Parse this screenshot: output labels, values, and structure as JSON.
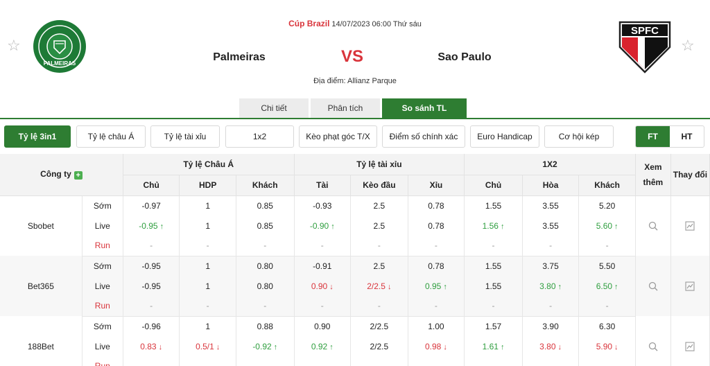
{
  "match": {
    "competition": "Cúp Brazil",
    "datetime": "14/07/2023 06:00 Thứ sáu",
    "home_team": "Palmeiras",
    "vs": "VS",
    "away_team": "Sao Paulo",
    "venue": "Địa điểm: Allianz Parque",
    "home_logo_text": "PALMEIRAS",
    "away_logo_text": "SPFC"
  },
  "main_tabs": [
    {
      "label": "Chi tiết",
      "active": false
    },
    {
      "label": "Phân tích",
      "active": false
    },
    {
      "label": "So sánh TL",
      "active": true
    }
  ],
  "filters": [
    {
      "label": "Tỷ lệ 3in1",
      "active": true
    },
    {
      "label": "Tỷ lệ châu Á",
      "active": false
    },
    {
      "label": "Tỷ lệ tài xỉu",
      "active": false
    },
    {
      "label": "1x2",
      "active": false
    },
    {
      "label": "Kèo phạt góc T/X",
      "active": false
    },
    {
      "label": "Điểm số chính xác",
      "active": false
    },
    {
      "label": "Euro Handicap",
      "active": false
    },
    {
      "label": "Cơ hội kép",
      "active": false
    }
  ],
  "period": {
    "ft": "FT",
    "ht": "HT",
    "active": "FT"
  },
  "table": {
    "company_header": "Công ty",
    "groups": [
      "Tỷ lệ Châu Á",
      "Tỷ lệ tài xỉu",
      "1X2"
    ],
    "view_more": "Xem thêm",
    "change": "Thay đổi",
    "subheaders": [
      "Chủ",
      "HDP",
      "Khách",
      "Tài",
      "Kèo đầu",
      "Xỉu",
      "Chủ",
      "Hòa",
      "Khách"
    ],
    "rows": [
      {
        "company": "Sbobet",
        "lines": [
          {
            "type": "Sớm",
            "cells": [
              [
                "-0.97",
                ""
              ],
              [
                "1",
                ""
              ],
              [
                "0.85",
                ""
              ],
              [
                "-0.93",
                ""
              ],
              [
                "2.5",
                ""
              ],
              [
                "0.78",
                ""
              ],
              [
                "1.55",
                ""
              ],
              [
                "3.55",
                ""
              ],
              [
                "5.20",
                ""
              ]
            ]
          },
          {
            "type": "Live",
            "cells": [
              [
                "-0.95",
                "up"
              ],
              [
                "1",
                ""
              ],
              [
                "0.85",
                ""
              ],
              [
                "-0.90",
                "up"
              ],
              [
                "2.5",
                ""
              ],
              [
                "0.78",
                ""
              ],
              [
                "1.56",
                "up"
              ],
              [
                "3.55",
                ""
              ],
              [
                "5.60",
                "up"
              ]
            ]
          },
          {
            "type": "Run",
            "cells": [
              [
                "-",
                ""
              ],
              [
                "-",
                ""
              ],
              [
                "-",
                ""
              ],
              [
                "-",
                ""
              ],
              [
                "-",
                ""
              ],
              [
                "-",
                ""
              ],
              [
                "-",
                ""
              ],
              [
                "-",
                ""
              ],
              [
                "-",
                ""
              ]
            ]
          }
        ]
      },
      {
        "company": "Bet365",
        "lines": [
          {
            "type": "Sớm",
            "cells": [
              [
                "-0.95",
                ""
              ],
              [
                "1",
                ""
              ],
              [
                "0.80",
                ""
              ],
              [
                "-0.91",
                ""
              ],
              [
                "2.5",
                ""
              ],
              [
                "0.78",
                ""
              ],
              [
                "1.55",
                ""
              ],
              [
                "3.75",
                ""
              ],
              [
                "5.50",
                ""
              ]
            ]
          },
          {
            "type": "Live",
            "cells": [
              [
                "-0.95",
                ""
              ],
              [
                "1",
                ""
              ],
              [
                "0.80",
                ""
              ],
              [
                "0.90",
                "down"
              ],
              [
                "2/2.5",
                "down"
              ],
              [
                "0.95",
                "up"
              ],
              [
                "1.55",
                ""
              ],
              [
                "3.80",
                "up"
              ],
              [
                "6.50",
                "up"
              ]
            ]
          },
          {
            "type": "Run",
            "cells": [
              [
                "-",
                ""
              ],
              [
                "-",
                ""
              ],
              [
                "-",
                ""
              ],
              [
                "-",
                ""
              ],
              [
                "-",
                ""
              ],
              [
                "-",
                ""
              ],
              [
                "-",
                ""
              ],
              [
                "-",
                ""
              ],
              [
                "-",
                ""
              ]
            ]
          }
        ]
      },
      {
        "company": "188Bet",
        "lines": [
          {
            "type": "Sớm",
            "cells": [
              [
                "-0.96",
                ""
              ],
              [
                "1",
                ""
              ],
              [
                "0.88",
                ""
              ],
              [
                "0.90",
                ""
              ],
              [
                "2/2.5",
                ""
              ],
              [
                "1.00",
                ""
              ],
              [
                "1.57",
                ""
              ],
              [
                "3.90",
                ""
              ],
              [
                "6.30",
                ""
              ]
            ]
          },
          {
            "type": "Live",
            "cells": [
              [
                "0.83",
                "down"
              ],
              [
                "0.5/1",
                "down"
              ],
              [
                "-0.92",
                "up"
              ],
              [
                "0.92",
                "up"
              ],
              [
                "2/2.5",
                ""
              ],
              [
                "0.98",
                "down"
              ],
              [
                "1.61",
                "up"
              ],
              [
                "3.80",
                "down"
              ],
              [
                "5.90",
                "down"
              ]
            ]
          },
          {
            "type": "Run",
            "cells": [
              [
                "-",
                ""
              ],
              [
                "-",
                ""
              ],
              [
                "-",
                ""
              ],
              [
                "-",
                ""
              ],
              [
                "-",
                ""
              ],
              [
                "-",
                ""
              ],
              [
                "-",
                ""
              ],
              [
                "-",
                ""
              ],
              [
                "-",
                ""
              ]
            ]
          }
        ]
      }
    ]
  },
  "colors": {
    "accent": "#2e7d32",
    "red": "#d9343b",
    "up": "#2e9e3e"
  }
}
